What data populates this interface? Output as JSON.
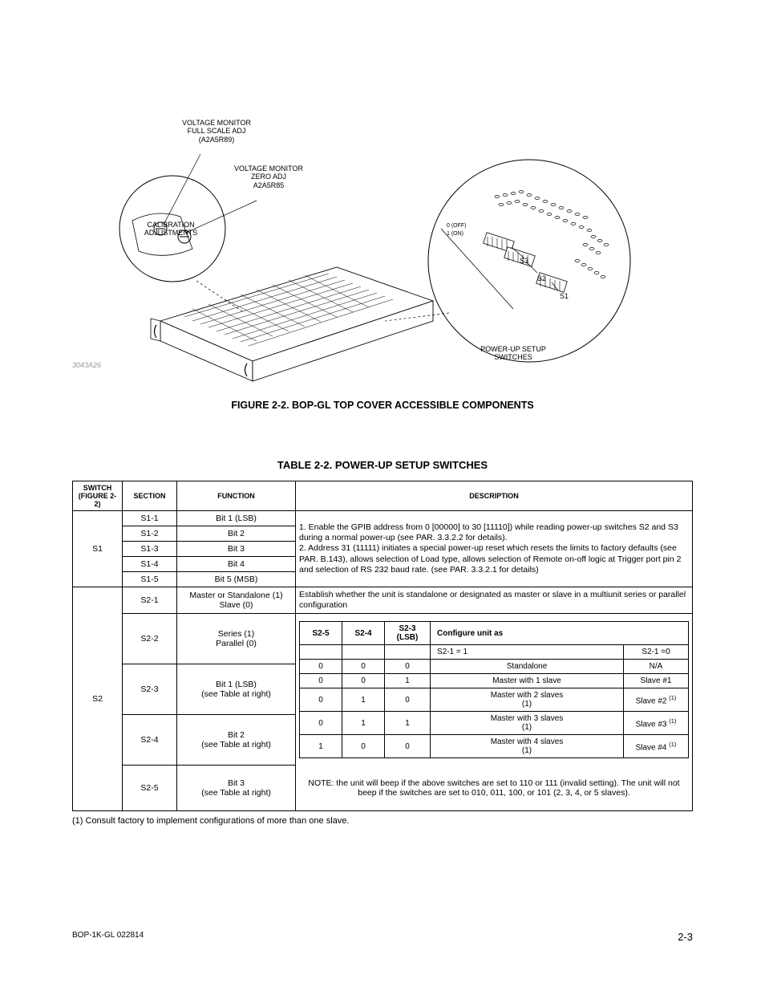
{
  "figure": {
    "callouts": {
      "voltage_full": "VOLTAGE MONITOR\nFULL SCALE ADJ\n(A2A5R89)",
      "voltage_zero": "VOLTAGE MONITOR\nZERO ADJ\nA2A5R85",
      "calibration": "CALIBRATION\nADJUSTMENTS",
      "powerup": "POWER-UP SETUP\nSWITCHES",
      "s1": "S1",
      "s2": "S2",
      "s3": "S3",
      "off": "0 (OFF)",
      "on": "1 (ON)"
    },
    "part_number": "3043A26",
    "caption": "FIGURE 2-2.    BOP-GL TOP COVER ACCESSIBLE COMPONENTS"
  },
  "table": {
    "caption": "TABLE 2-2.  POWER-UP SETUP SWITCHES",
    "headers": {
      "switch": "SWITCH\n(FIGURE 2-2)",
      "section": "SECTION",
      "function": "FUNCTION",
      "description": "DESCRIPTION"
    },
    "s1": {
      "label": "S1",
      "rows": [
        {
          "section": "S1-1",
          "function": "Bit 1 (LSB)"
        },
        {
          "section": "S1-2",
          "function": "Bit 2"
        },
        {
          "section": "S1-3",
          "function": "Bit 3"
        },
        {
          "section": "S1-4",
          "function": "Bit 4"
        },
        {
          "section": "S1-5",
          "function": "Bit 5 (MSB)"
        }
      ],
      "description": "1. Enable the GPIB address from 0 [00000] to 30 [11110]) while reading power-up switches S2 and S3 during a normal power-up (see PAR. 3.3.2.2 for details).\n2. Address 31 (11111) initiates a special power-up reset which resets the limits to factory defaults (see PAR. B.143), allows selection of Load type, allows selection of Remote on-off logic at Trigger port pin 2 and selection of RS 232 baud rate. (see PAR. 3.3.2.1 for details)"
    },
    "s2": {
      "label": "S2",
      "r1": {
        "section": "S2-1",
        "function": "Master or Standalone (1)\nSlave (0)",
        "description": "Establish whether the unit is standalone or designated as master or slave in a multiunit series or parallel configuration"
      },
      "r2": {
        "section": "S2-2",
        "function": "Series (1)\nParallel (0)"
      },
      "r3": {
        "section": "S2-3",
        "function": "Bit 1 (LSB)\n(see Table at right)"
      },
      "r4": {
        "section": "S2-4",
        "function": "Bit 2\n(see Table at right)"
      },
      "r5": {
        "section": "S2-5",
        "function": "Bit 3\n(see Table at right)"
      },
      "nested_headers": {
        "c1": "S2-5",
        "c2": "S2-4",
        "c3": "S2-3\n(LSB)",
        "c4": "Configure unit as"
      },
      "nested_sub": {
        "a": "S2-1 = 1",
        "b": "S2-1 =0"
      },
      "nested_rows": [
        {
          "a": "0",
          "b": "0",
          "c": "0",
          "d": "Standalone",
          "e": "N/A"
        },
        {
          "a": "0",
          "b": "0",
          "c": "1",
          "d": "Master with 1 slave",
          "e": "Slave #1"
        },
        {
          "a": "0",
          "b": "1",
          "c": "0",
          "d": "Master with 2 slaves (1)",
          "e": "Slave #2 (1)"
        },
        {
          "a": "0",
          "b": "1",
          "c": "1",
          "d": "Master with 3 slaves (1)",
          "e": "Slave #3 (1)"
        },
        {
          "a": "1",
          "b": "0",
          "c": "0",
          "d": "Master with 4 slaves (1)",
          "e": "Slave #4 (1)"
        }
      ],
      "note": "NOTE: the unit will beep if the above switches are set to 110 or 111 (invalid setting). The unit will not beep if the switches are set to 010, 011, 100, or 101 (2, 3, 4, or 5 slaves)."
    }
  },
  "footnote": "(1) Consult factory to implement configurations of more than one slave.",
  "footer": {
    "left": "BOP-1K-GL 022814",
    "right": "2-3"
  }
}
